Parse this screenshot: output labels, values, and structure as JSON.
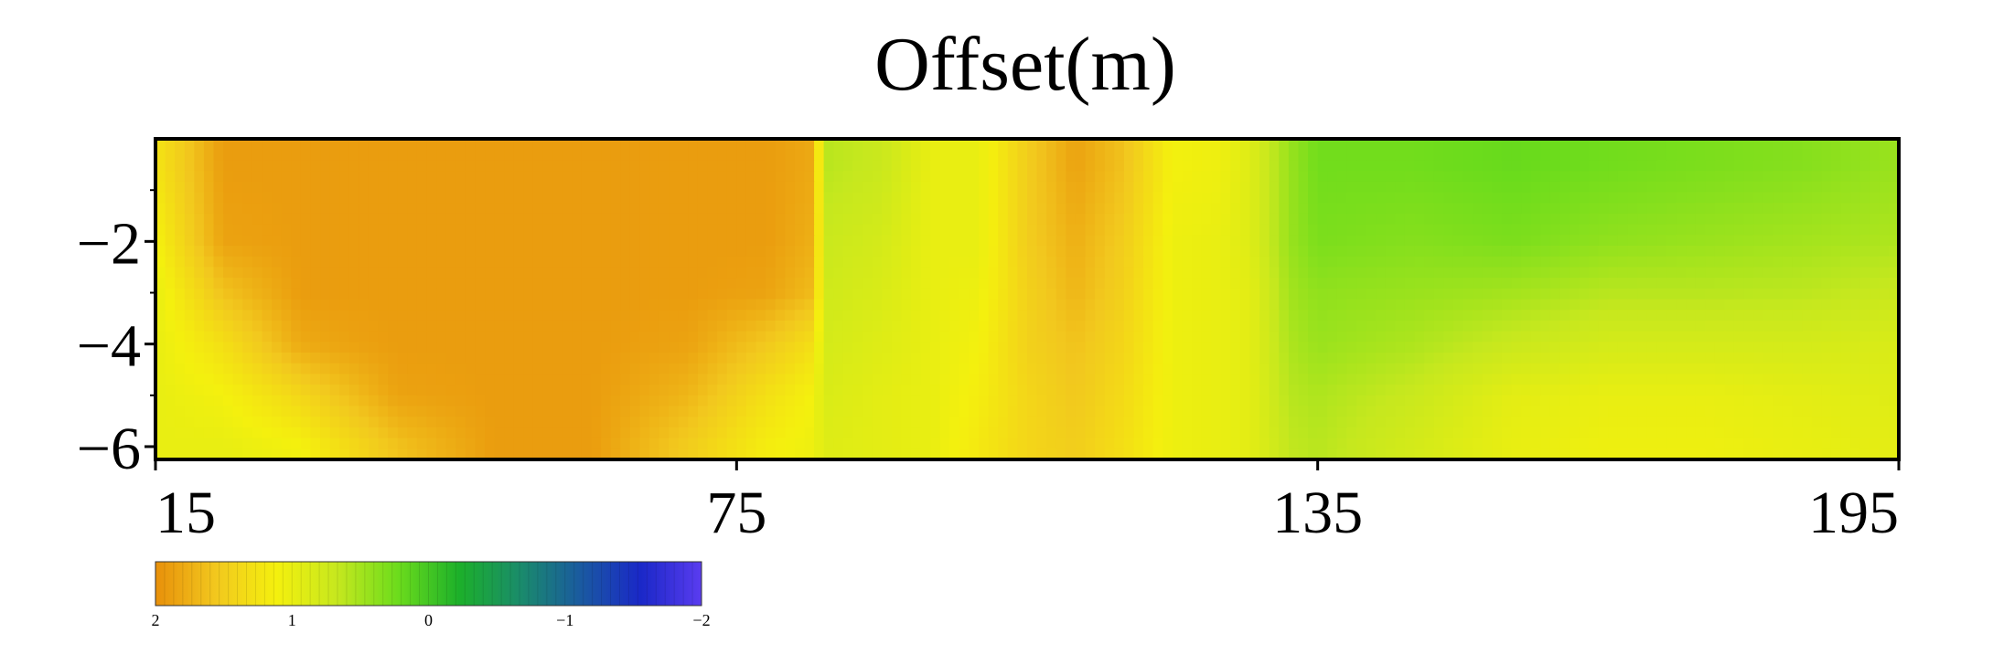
{
  "chart_data": {
    "type": "heatmap",
    "title": "Offset(m)",
    "xlabel": "",
    "ylabel": "",
    "xlim": [
      15,
      195
    ],
    "ylim": [
      -6.25,
      0
    ],
    "x_ticks": [
      15,
      75,
      135,
      195
    ],
    "x_tick_labels": [
      "15",
      "75",
      "135",
      "195"
    ],
    "y_ticks": [
      -2,
      -4,
      -6
    ],
    "y_tick_labels": [
      "−2",
      "−4",
      "−6"
    ],
    "grid": false,
    "colorbar": {
      "range": [
        2,
        -2
      ],
      "ticks": [
        2,
        1,
        0,
        -1,
        -2
      ],
      "tick_labels": [
        "2",
        "1",
        "0",
        "−1",
        "−2"
      ],
      "colors": [
        "#e8900a",
        "#f2c81e",
        "#f4f00e",
        "#c6e81e",
        "#6cdc1c",
        "#1cb02a",
        "#1a8c6a",
        "#1a5aa0",
        "#1a28c8",
        "#5a3cf0"
      ]
    },
    "x": [
      15,
      22,
      30,
      40,
      50,
      60,
      70,
      78,
      83,
      84,
      90,
      95,
      100,
      105,
      110,
      115,
      120,
      125,
      128,
      132,
      135,
      145,
      155,
      165,
      175,
      185,
      195
    ],
    "y": [
      -0.5,
      -2,
      -3,
      -4,
      -5,
      -6
    ],
    "values": [
      [
        1.25,
        1.9,
        1.9,
        1.9,
        1.9,
        1.9,
        1.9,
        1.9,
        1.8,
        0.6,
        0.7,
        1.0,
        1.0,
        1.5,
        1.85,
        1.6,
        1.1,
        1.05,
        0.9,
        0.45,
        0.25,
        0.25,
        0.2,
        0.25,
        0.3,
        0.35,
        0.45
      ],
      [
        1.1,
        1.85,
        1.9,
        1.9,
        1.9,
        1.9,
        1.9,
        1.9,
        1.75,
        0.7,
        0.8,
        1.0,
        1.0,
        1.5,
        1.75,
        1.5,
        1.05,
        1.0,
        0.9,
        0.45,
        0.3,
        0.35,
        0.3,
        0.4,
        0.45,
        0.5,
        0.55
      ],
      [
        1.0,
        1.6,
        1.9,
        1.9,
        1.9,
        1.9,
        1.9,
        1.85,
        1.65,
        0.75,
        0.85,
        1.0,
        1.05,
        1.45,
        1.7,
        1.45,
        1.05,
        1.0,
        0.95,
        0.5,
        0.4,
        0.45,
        0.5,
        0.6,
        0.6,
        0.62,
        0.7
      ],
      [
        1.0,
        1.3,
        1.8,
        1.9,
        1.9,
        1.9,
        1.85,
        1.55,
        1.3,
        0.8,
        0.9,
        1.0,
        1.1,
        1.45,
        1.6,
        1.4,
        1.05,
        1.0,
        0.95,
        0.55,
        0.45,
        0.55,
        0.7,
        0.8,
        0.8,
        0.8,
        0.85
      ],
      [
        1.0,
        1.1,
        1.4,
        1.85,
        1.9,
        1.9,
        1.7,
        1.3,
        1.1,
        0.85,
        0.95,
        1.0,
        1.15,
        1.4,
        1.55,
        1.35,
        1.05,
        1.0,
        0.95,
        0.6,
        0.55,
        0.7,
        0.95,
        1.0,
        1.0,
        0.95,
        0.9
      ],
      [
        1.0,
        1.0,
        1.1,
        1.6,
        1.9,
        1.9,
        1.5,
        1.15,
        1.05,
        0.9,
        0.95,
        1.0,
        1.2,
        1.4,
        1.5,
        1.3,
        1.05,
        1.0,
        0.95,
        0.65,
        0.6,
        0.8,
        1.0,
        1.05,
        1.05,
        1.0,
        0.95
      ]
    ]
  }
}
